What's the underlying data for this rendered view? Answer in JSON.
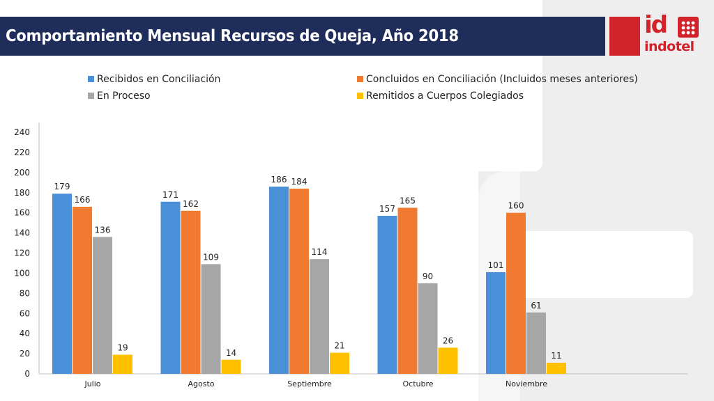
{
  "header": {
    "title": "Comportamiento Mensual Recursos de Queja, Año 2018"
  },
  "logo": {
    "mark": "id",
    "word": "indotel",
    "color": "#d2232a"
  },
  "chart_data": {
    "type": "bar",
    "title": "",
    "xlabel": "",
    "ylabel": "",
    "categories": [
      "Julio",
      "Agosto",
      "Septiembre",
      "Octubre",
      "Noviembre"
    ],
    "ylim": [
      0,
      240
    ],
    "yticks": [
      0,
      20,
      40,
      60,
      80,
      100,
      120,
      140,
      160,
      180,
      200,
      220,
      240
    ],
    "grid": false,
    "legend_position": "top",
    "series": [
      {
        "name": "Recibidos en Conciliación",
        "color": "#4a90d9",
        "values": [
          179,
          171,
          186,
          157,
          101
        ]
      },
      {
        "name": "Concluidos en Conciliación (Incluidos meses anteriores)",
        "color": "#f07a30",
        "values": [
          166,
          162,
          184,
          165,
          160
        ]
      },
      {
        "name": "En Proceso",
        "color": "#a6a6a6",
        "values": [
          136,
          109,
          114,
          90,
          61
        ]
      },
      {
        "name": "Remitidos a Cuerpos Colegiados",
        "color": "#ffc000",
        "values": [
          19,
          14,
          21,
          26,
          11
        ]
      }
    ]
  }
}
